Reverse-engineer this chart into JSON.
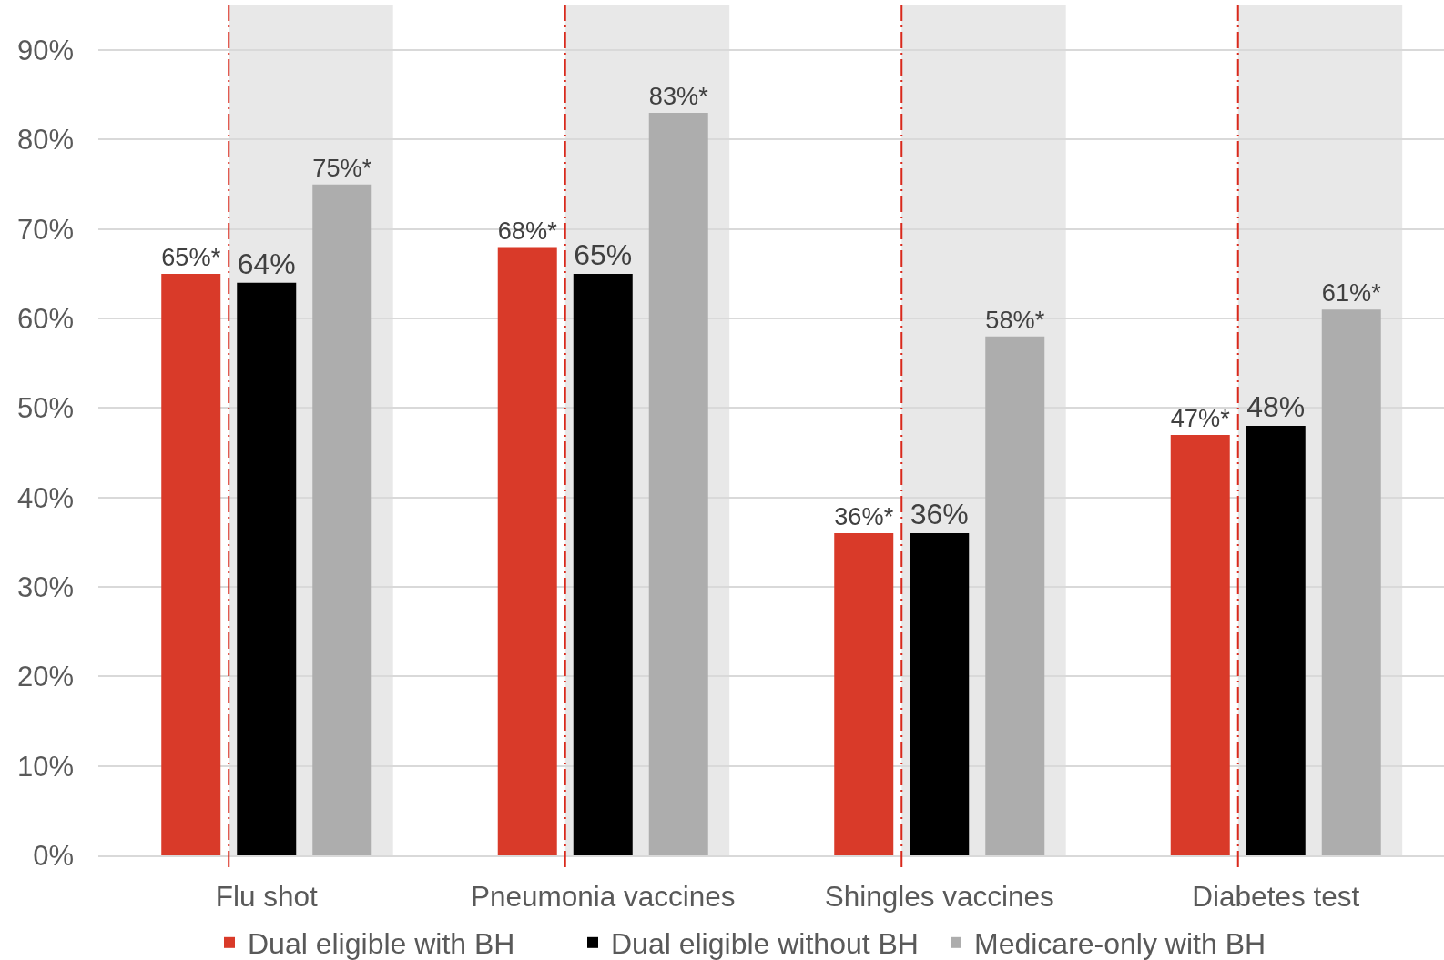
{
  "chart_data": {
    "type": "bar",
    "categories": [
      "Flu shot",
      "Pneumonia vaccines",
      "Shingles vaccines",
      "Diabetes test"
    ],
    "series": [
      {
        "name": "Dual eligible with BH",
        "color": "#d93a29",
        "values": [
          65,
          68,
          36,
          47
        ],
        "value_labels": [
          "65%*",
          "68%*",
          "36%*",
          "47%*"
        ]
      },
      {
        "name": "Dual eligible without BH",
        "color": "#000000",
        "values": [
          64,
          65,
          36,
          48
        ],
        "value_labels": [
          "64%",
          "65%",
          "36%",
          "48%"
        ]
      },
      {
        "name": "Medicare-only with BH",
        "color": "#adadad",
        "values": [
          75,
          83,
          58,
          61
        ],
        "value_labels": [
          "75%*",
          "83%*",
          "58%*",
          "61%*"
        ]
      }
    ],
    "ylim": [
      0,
      95
    ],
    "yticks": [
      {
        "value": 0,
        "label": "0%"
      },
      {
        "value": 10,
        "label": "10%"
      },
      {
        "value": 20,
        "label": "20%"
      },
      {
        "value": 30,
        "label": "30%"
      },
      {
        "value": 40,
        "label": "40%"
      },
      {
        "value": 50,
        "label": "50%"
      },
      {
        "value": 60,
        "label": "60%"
      },
      {
        "value": 70,
        "label": "70%"
      },
      {
        "value": 80,
        "label": "80%"
      },
      {
        "value": 90,
        "label": "90%"
      }
    ],
    "grid": "y",
    "legend": "bottom",
    "bands": [
      {
        "axis": "x",
        "from": "Flu shot",
        "to": "Flu shot",
        "color": "#e8e8e8"
      },
      {
        "axis": "x",
        "from": "Pneumonia vaccines",
        "to": "Pneumonia vaccines",
        "color": "#e8e8e8"
      },
      {
        "axis": "x",
        "from": "Shingles vaccines",
        "to": "Shingles vaccines",
        "color": "#e8e8e8"
      },
      {
        "axis": "x",
        "from": "Diabetes test",
        "to": "Diabetes test",
        "color": "#e8e8e8"
      }
    ],
    "ref_lines": [
      {
        "axis": "x",
        "value": "Flu shot",
        "color": "#d9291c",
        "line_style": "dashdot"
      },
      {
        "axis": "x",
        "value": "Pneumonia vaccines",
        "color": "#d9291c",
        "line_style": "dashdot"
      },
      {
        "axis": "x",
        "value": "Shingles vaccines",
        "color": "#d9291c",
        "line_style": "dashdot"
      },
      {
        "axis": "x",
        "value": "Diabetes test",
        "color": "#d9291c",
        "line_style": "dashdot"
      }
    ]
  }
}
